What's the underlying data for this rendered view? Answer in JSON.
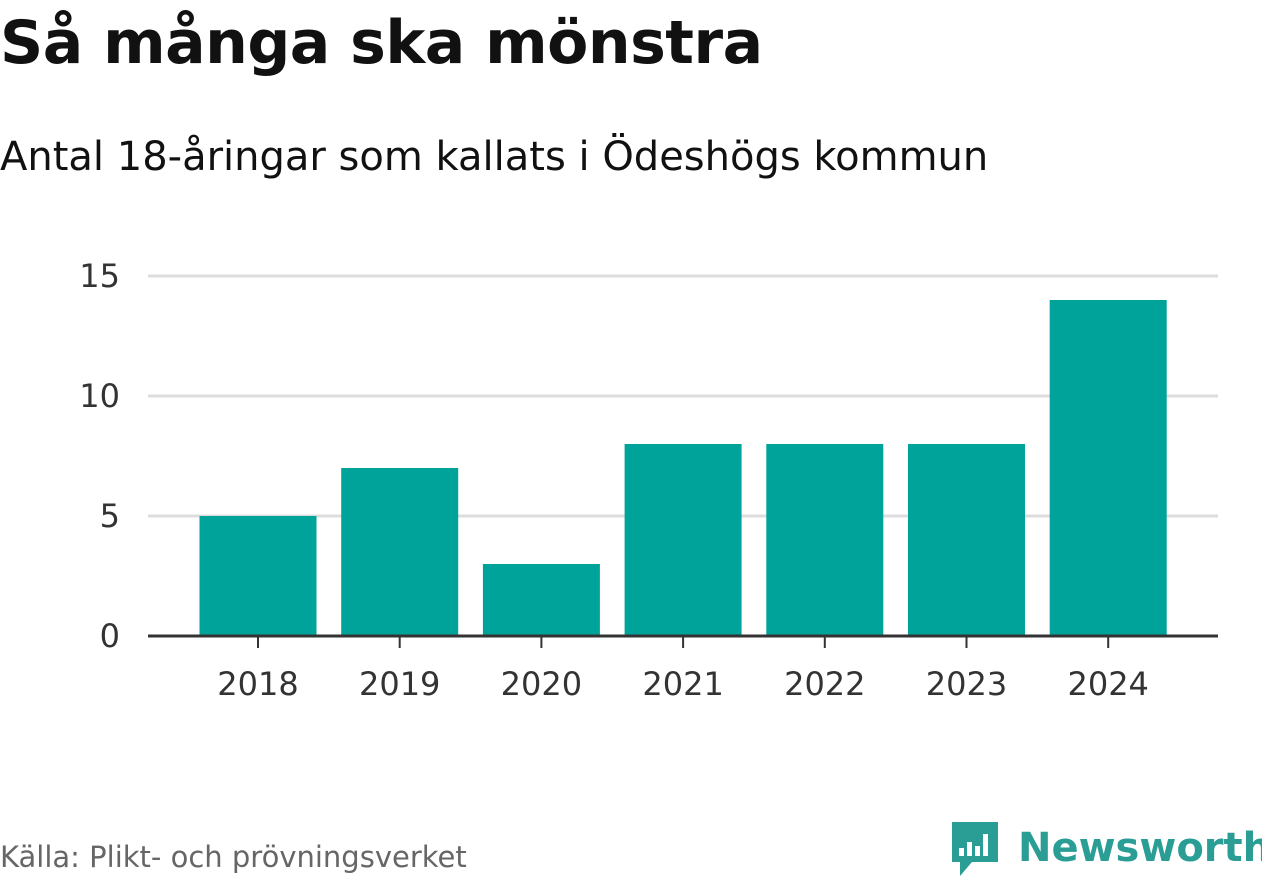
{
  "chart_data": {
    "type": "bar",
    "title": "Så många ska mönstra",
    "subtitle": "Antal 18-åringar som kallats i Ödeshögs kommun",
    "categories": [
      "2018",
      "2019",
      "2020",
      "2021",
      "2022",
      "2023",
      "2024"
    ],
    "values": [
      5,
      7,
      3,
      8,
      8,
      8,
      14
    ],
    "ylim": [
      0,
      15
    ],
    "yticks": [
      "0",
      "5",
      "10",
      "15"
    ],
    "grid": true,
    "bar_color": "#00a39a",
    "gridline_color": "#dddddd",
    "axis_color": "#333333"
  },
  "footer": {
    "source": "Källa: Plikt- och prövningsverket",
    "brand": "Newsworthy",
    "brand_icon": "newsworthy-logo-icon",
    "brand_color": "#2a9d95"
  }
}
